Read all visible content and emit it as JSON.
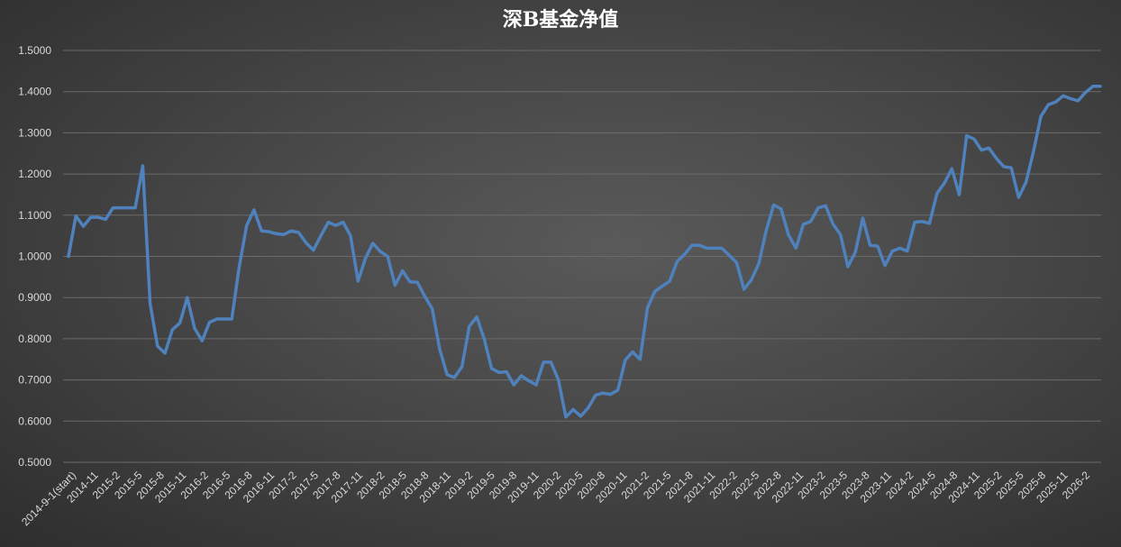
{
  "chart_data": {
    "type": "line",
    "title": "深B基金净值",
    "xlabel": "",
    "ylabel": "",
    "ylim": [
      0.5,
      1.5
    ],
    "yticks": [
      "0.5000",
      "0.6000",
      "0.7000",
      "0.8000",
      "0.9000",
      "1.0000",
      "1.1000",
      "1.2000",
      "1.3000",
      "1.4000",
      "1.5000"
    ],
    "grid": true,
    "legend": "none",
    "line_color": "#4f81bd",
    "x_tick_labels": [
      "2014-9-1(start)",
      "2014-11",
      "2015-2",
      "2015-5",
      "2015-8",
      "2015-11",
      "2016-2",
      "2016-5",
      "2016-8",
      "2016-11",
      "2017-2",
      "2017-5",
      "2017-8",
      "2017-11",
      "2018-2",
      "2018-5",
      "2018-8",
      "2018-11",
      "2019-2",
      "2019-5",
      "2019-8",
      "2019-11",
      "2020-2",
      "2020-5",
      "2020-8",
      "2020-11",
      "2021-2",
      "2021-5",
      "2021-8",
      "2021-11",
      "2022-2",
      "2022-5",
      "2022-8",
      "2022-11",
      "2023-2",
      "2023-5",
      "2023-8",
      "2023-11",
      "2024-2",
      "2024-5",
      "2024-8",
      "2024-11",
      "2025-2",
      "2025-5",
      "2025-8",
      "2025-11",
      "2026-2"
    ],
    "series": [
      {
        "values": [
          1.0,
          1.098,
          1.073,
          1.095,
          1.095,
          1.09,
          1.118,
          1.118,
          1.118,
          1.118,
          1.22,
          0.885,
          0.782,
          0.765,
          0.822,
          0.838,
          0.9,
          0.825,
          0.795,
          0.84,
          0.848,
          0.848,
          0.848,
          0.975,
          1.075,
          1.113,
          1.062,
          1.06,
          1.055,
          1.053,
          1.062,
          1.058,
          1.033,
          1.015,
          1.05,
          1.083,
          1.075,
          1.083,
          1.05,
          0.94,
          0.995,
          1.032,
          1.012,
          1.0,
          0.93,
          0.965,
          0.938,
          0.937,
          0.903,
          0.873,
          0.775,
          0.713,
          0.706,
          0.732,
          0.83,
          0.853,
          0.8,
          0.728,
          0.718,
          0.72,
          0.688,
          0.71,
          0.698,
          0.688,
          0.743,
          0.743,
          0.7,
          0.61,
          0.628,
          0.612,
          0.632,
          0.663,
          0.668,
          0.665,
          0.675,
          0.748,
          0.768,
          0.75,
          0.875,
          0.915,
          0.928,
          0.94,
          0.988,
          1.005,
          1.027,
          1.027,
          1.02,
          1.02,
          1.02,
          1.003,
          0.985,
          0.92,
          0.943,
          0.983,
          1.063,
          1.125,
          1.115,
          1.052,
          1.02,
          1.078,
          1.085,
          1.118,
          1.123,
          1.078,
          1.053,
          0.975,
          1.01,
          1.093,
          1.027,
          1.025,
          0.978,
          1.013,
          1.02,
          1.013,
          1.083,
          1.085,
          1.08,
          1.153,
          1.178,
          1.213,
          1.15,
          1.293,
          1.285,
          1.258,
          1.263,
          1.238,
          1.218,
          1.215,
          1.143,
          1.18,
          1.255,
          1.34,
          1.368,
          1.375,
          1.39,
          1.383,
          1.378,
          1.398,
          1.413,
          1.413
        ]
      }
    ]
  }
}
